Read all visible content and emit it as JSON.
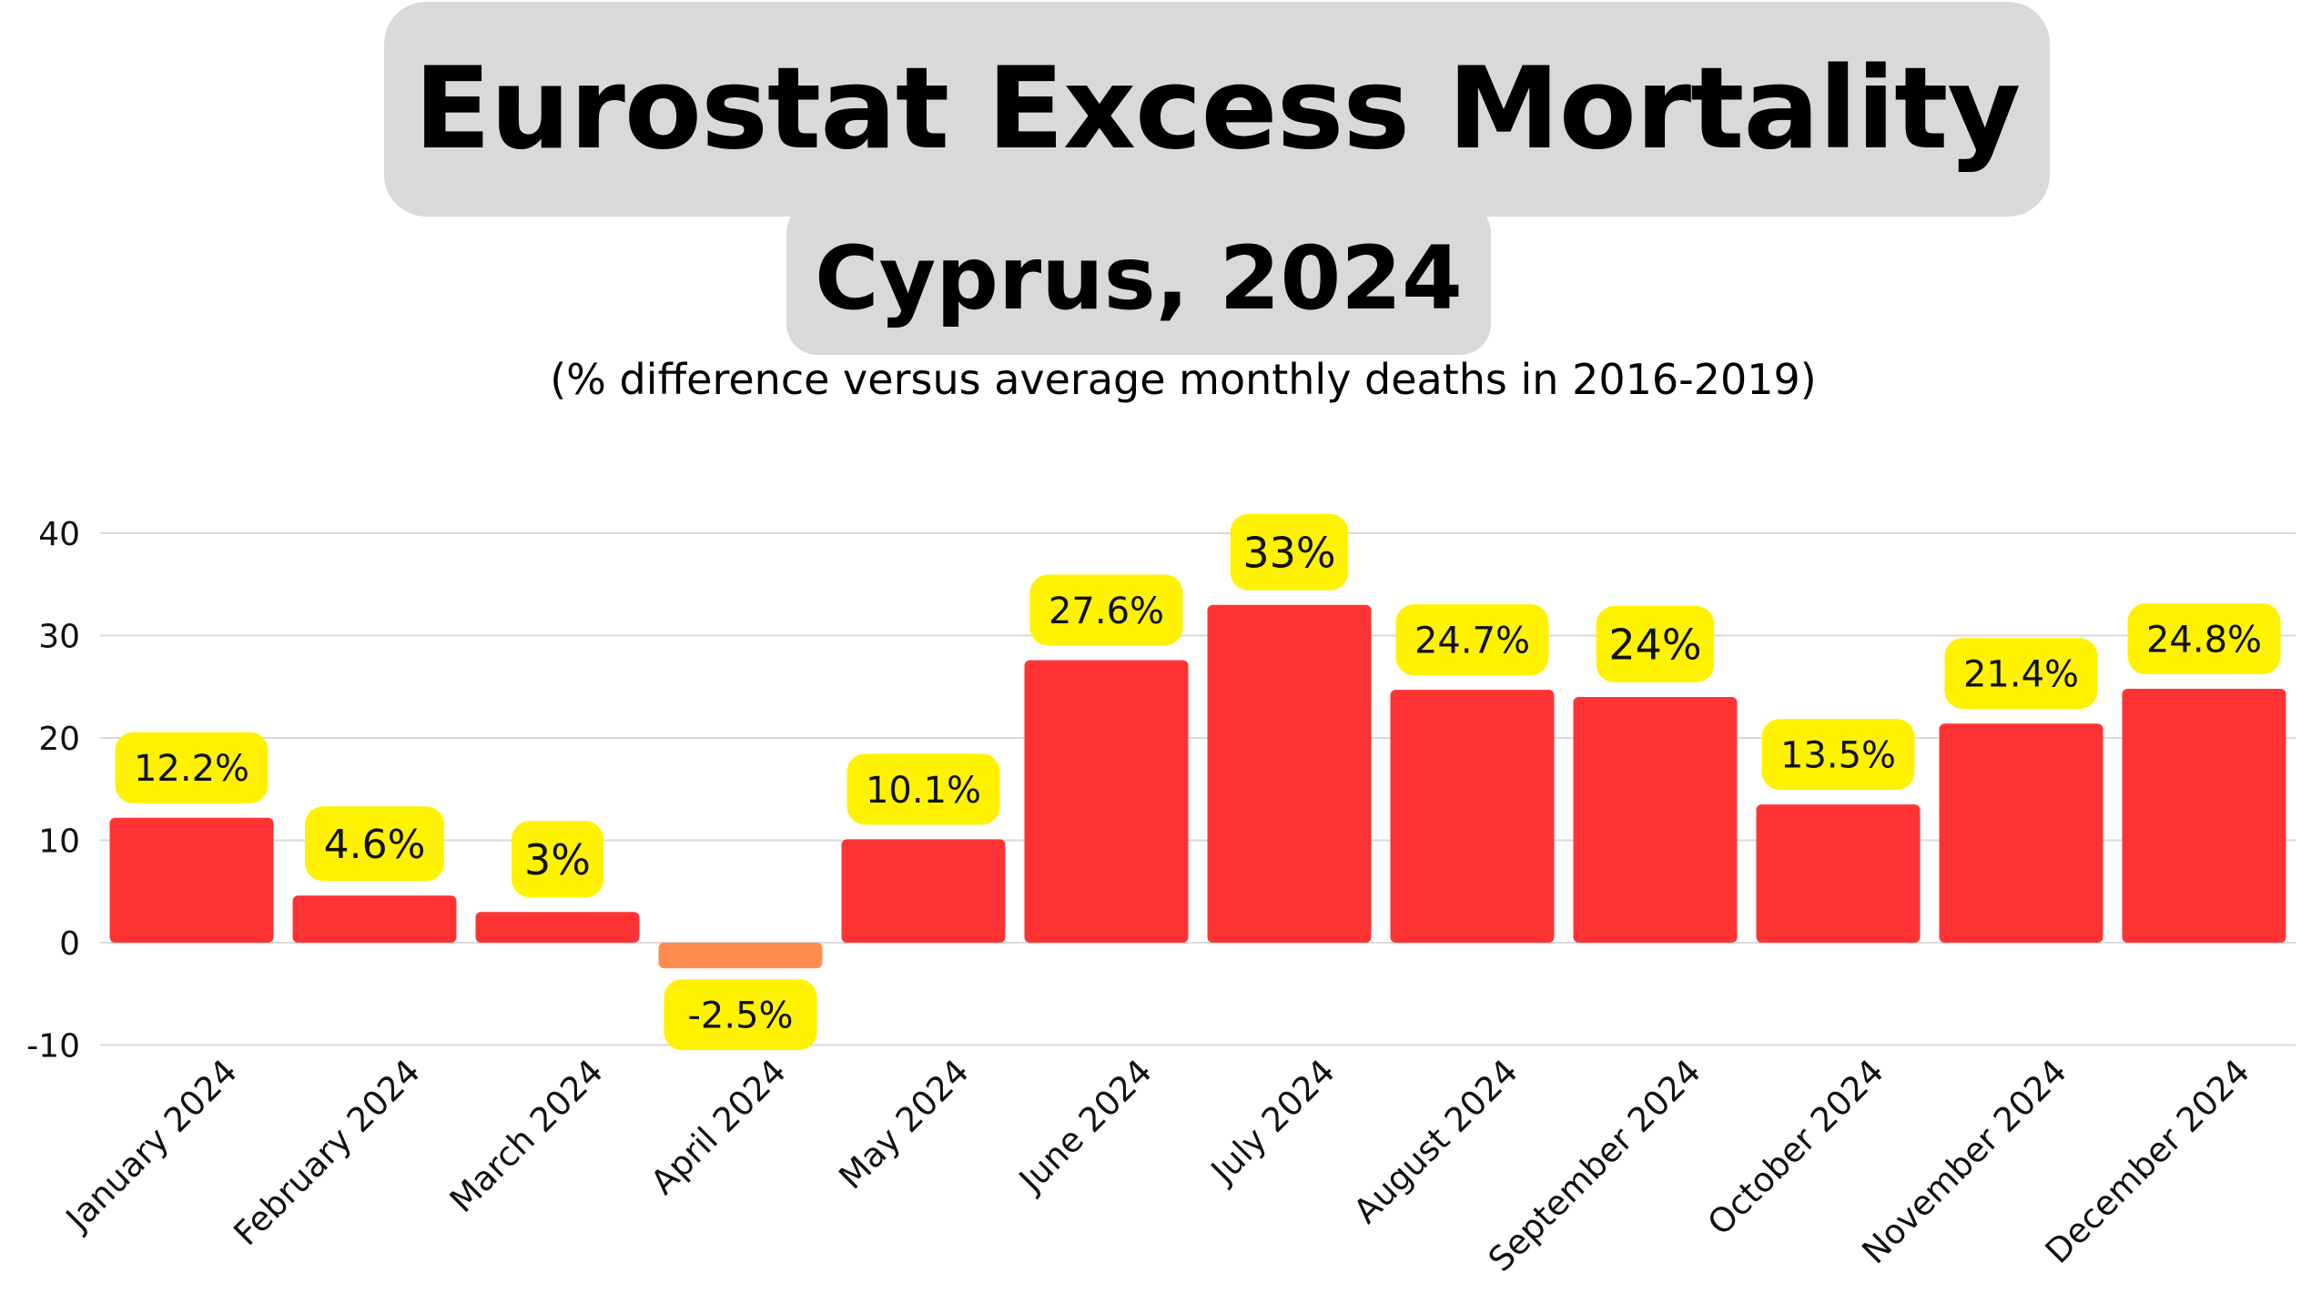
{
  "title": "Eurostat Excess Mortality",
  "subtitle": "Cyprus, 2024",
  "note": "(% difference versus average monthly deaths in 2016-2019)",
  "colors": {
    "positive_bar": "#ff3333",
    "negative_bar": "#ff8c4f",
    "label_badge": "#fff200",
    "grid": "#d9d9d9",
    "title_box": "#d9d9d9"
  },
  "chart_data": {
    "type": "bar",
    "title": "Eurostat Excess Mortality",
    "subtitle": "Cyprus, 2024",
    "xlabel": "",
    "ylabel": "",
    "ylim": [
      -10,
      40
    ],
    "yticks": [
      "40",
      "30",
      "20",
      "10",
      "0",
      "-10"
    ],
    "grid": true,
    "categories": [
      "January 2024",
      "February 2024",
      "March 2024",
      "April 2024",
      "May 2024",
      "June 2024",
      "July 2024",
      "August 2024",
      "September 2024",
      "October 2024",
      "November 2024",
      "December 2024"
    ],
    "values": [
      12.2,
      4.6,
      3,
      -2.5,
      10.1,
      27.6,
      33,
      24.7,
      24,
      13.5,
      21.4,
      24.8
    ],
    "data_labels": [
      "12.2%",
      "4.6%",
      "3%",
      "-2.5%",
      "10.1%",
      "27.6%",
      "33%",
      "24.7%",
      "24%",
      "13.5%",
      "21.4%",
      "24.8%"
    ]
  }
}
